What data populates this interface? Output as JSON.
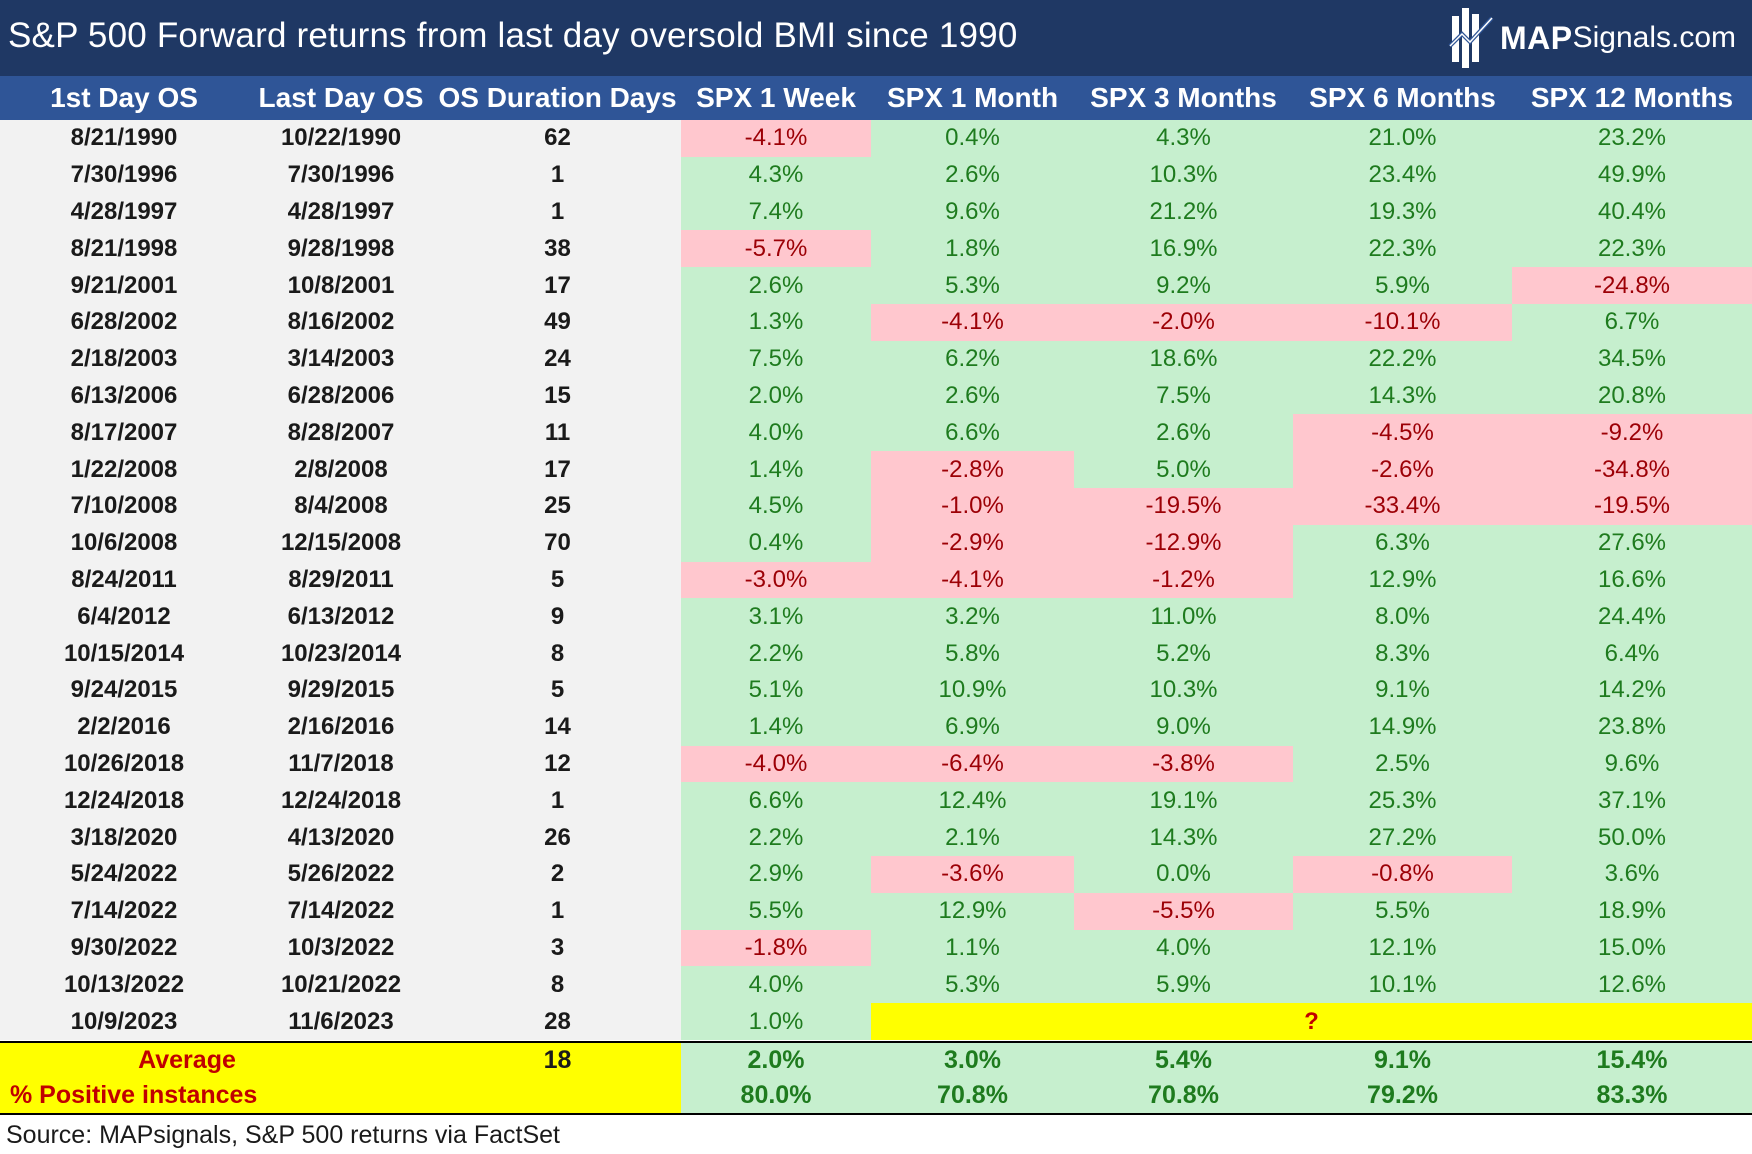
{
  "title": "S&P 500 Forward returns from last day oversold BMI since 1990",
  "logo": {
    "strong": "MAP",
    "light": "Signals.com",
    "icon": "map-signals-logo-icon"
  },
  "colors": {
    "title_bg": "#1f3864",
    "header_bg": "#2f5597",
    "positive_bg": "#c6efce",
    "positive_text": "#1e7b1e",
    "negative_bg": "#ffc7ce",
    "negative_text": "#9c0006",
    "highlight": "#ffff00",
    "highlight_text": "#c00000"
  },
  "chart_data": {
    "type": "table",
    "title": "S&P 500 Forward returns from last day oversold BMI since 1990",
    "columns": [
      "1st Day OS",
      "Last Day OS",
      "OS Duration Days",
      "SPX 1 Week",
      "SPX 1 Month",
      "SPX 3 Months",
      "SPX 6 Months",
      "SPX 12 Months"
    ],
    "rows": [
      [
        "8/21/1990",
        "10/22/1990",
        "62",
        "-4.1%",
        "0.4%",
        "4.3%",
        "21.0%",
        "23.2%"
      ],
      [
        "7/30/1996",
        "7/30/1996",
        "1",
        "4.3%",
        "2.6%",
        "10.3%",
        "23.4%",
        "49.9%"
      ],
      [
        "4/28/1997",
        "4/28/1997",
        "1",
        "7.4%",
        "9.6%",
        "21.2%",
        "19.3%",
        "40.4%"
      ],
      [
        "8/21/1998",
        "9/28/1998",
        "38",
        "-5.7%",
        "1.8%",
        "16.9%",
        "22.3%",
        "22.3%"
      ],
      [
        "9/21/2001",
        "10/8/2001",
        "17",
        "2.6%",
        "5.3%",
        "9.2%",
        "5.9%",
        "-24.8%"
      ],
      [
        "6/28/2002",
        "8/16/2002",
        "49",
        "1.3%",
        "-4.1%",
        "-2.0%",
        "-10.1%",
        "6.7%"
      ],
      [
        "2/18/2003",
        "3/14/2003",
        "24",
        "7.5%",
        "6.2%",
        "18.6%",
        "22.2%",
        "34.5%"
      ],
      [
        "6/13/2006",
        "6/28/2006",
        "15",
        "2.0%",
        "2.6%",
        "7.5%",
        "14.3%",
        "20.8%"
      ],
      [
        "8/17/2007",
        "8/28/2007",
        "11",
        "4.0%",
        "6.6%",
        "2.6%",
        "-4.5%",
        "-9.2%"
      ],
      [
        "1/22/2008",
        "2/8/2008",
        "17",
        "1.4%",
        "-2.8%",
        "5.0%",
        "-2.6%",
        "-34.8%"
      ],
      [
        "7/10/2008",
        "8/4/2008",
        "25",
        "4.5%",
        "-1.0%",
        "-19.5%",
        "-33.4%",
        "-19.5%"
      ],
      [
        "10/6/2008",
        "12/15/2008",
        "70",
        "0.4%",
        "-2.9%",
        "-12.9%",
        "6.3%",
        "27.6%"
      ],
      [
        "8/24/2011",
        "8/29/2011",
        "5",
        "-3.0%",
        "-4.1%",
        "-1.2%",
        "12.9%",
        "16.6%"
      ],
      [
        "6/4/2012",
        "6/13/2012",
        "9",
        "3.1%",
        "3.2%",
        "11.0%",
        "8.0%",
        "24.4%"
      ],
      [
        "10/15/2014",
        "10/23/2014",
        "8",
        "2.2%",
        "5.8%",
        "5.2%",
        "8.3%",
        "6.4%"
      ],
      [
        "9/24/2015",
        "9/29/2015",
        "5",
        "5.1%",
        "10.9%",
        "10.3%",
        "9.1%",
        "14.2%"
      ],
      [
        "2/2/2016",
        "2/16/2016",
        "14",
        "1.4%",
        "6.9%",
        "9.0%",
        "14.9%",
        "23.8%"
      ],
      [
        "10/26/2018",
        "11/7/2018",
        "12",
        "-4.0%",
        "-6.4%",
        "-3.8%",
        "2.5%",
        "9.6%"
      ],
      [
        "12/24/2018",
        "12/24/2018",
        "1",
        "6.6%",
        "12.4%",
        "19.1%",
        "25.3%",
        "37.1%"
      ],
      [
        "3/18/2020",
        "4/13/2020",
        "26",
        "2.2%",
        "2.1%",
        "14.3%",
        "27.2%",
        "50.0%"
      ],
      [
        "5/24/2022",
        "5/26/2022",
        "2",
        "2.9%",
        "-3.6%",
        "0.0%",
        "-0.8%",
        "3.6%"
      ],
      [
        "7/14/2022",
        "7/14/2022",
        "1",
        "5.5%",
        "12.9%",
        "-5.5%",
        "5.5%",
        "18.9%"
      ],
      [
        "9/30/2022",
        "10/3/2022",
        "3",
        "-1.8%",
        "1.1%",
        "4.0%",
        "12.1%",
        "15.0%"
      ],
      [
        "10/13/2022",
        "10/21/2022",
        "8",
        "4.0%",
        "5.3%",
        "5.9%",
        "10.1%",
        "12.6%"
      ],
      [
        "10/9/2023",
        "11/6/2023",
        "28",
        "1.0%",
        "",
        "",
        "",
        ""
      ]
    ],
    "pending_marker": "?",
    "summary": [
      {
        "label": "Average",
        "duration": "18",
        "values": [
          "2.0%",
          "3.0%",
          "5.4%",
          "9.1%",
          "15.4%"
        ]
      },
      {
        "label": "% Positive instances",
        "duration": "",
        "values": [
          "80.0%",
          "70.8%",
          "70.8%",
          "79.2%",
          "83.3%"
        ]
      }
    ]
  },
  "source": "Source: MAPsignals, S&P 500 returns via FactSet"
}
